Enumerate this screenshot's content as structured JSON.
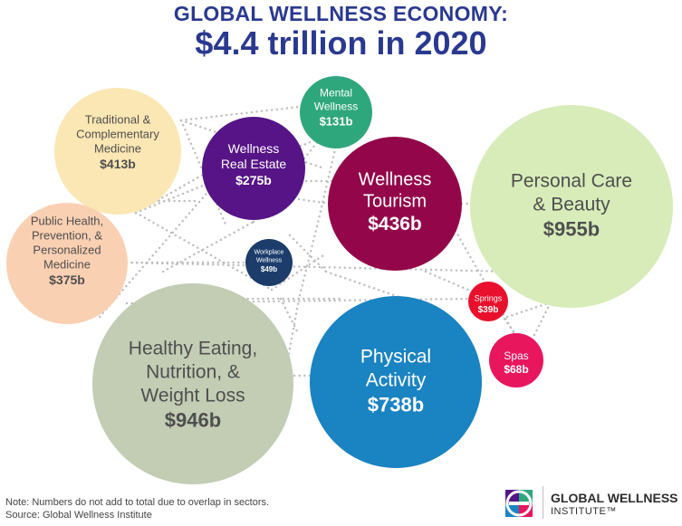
{
  "title": {
    "line1": "GLOBAL WELLNESS ECONOMY:",
    "line2": "$4.4 trillion in 2020"
  },
  "chart_data": {
    "type": "bubble",
    "unit": "US$ billions",
    "sectors": [
      {
        "name": "Personal Care & Beauty",
        "lines": [
          "Personal Care",
          "& Beauty"
        ],
        "label": "$955b",
        "value": 955,
        "color": "#d8ecb9",
        "text_color": "#4f4f4f"
      },
      {
        "name": "Healthy Eating, Nutrition, & Weight Loss",
        "lines": [
          "Healthy Eating,",
          "Nutrition, &",
          "Weight Loss"
        ],
        "label": "$946b",
        "value": 946,
        "color": "#c2cdb4",
        "text_color": "#4f4f4f"
      },
      {
        "name": "Physical Activity",
        "lines": [
          "Physical",
          "Activity"
        ],
        "label": "$738b",
        "value": 738,
        "color": "#1a83c2",
        "text_color": "#ffffff"
      },
      {
        "name": "Wellness Tourism",
        "lines": [
          "Wellness",
          "Tourism"
        ],
        "label": "$436b",
        "value": 436,
        "color": "#93074a",
        "text_color": "#ffffff"
      },
      {
        "name": "Traditional & Complementary Medicine",
        "lines": [
          "Traditional &",
          "Complementary",
          "Medicine"
        ],
        "label": "$413b",
        "value": 413,
        "color": "#fbe7b4",
        "text_color": "#4f4f4f"
      },
      {
        "name": "Public Health, Prevention, & Personalized Medicine",
        "lines": [
          "Public Health,",
          "Prevention, &",
          "Personalized",
          "Medicine"
        ],
        "label": "$375b",
        "value": 375,
        "color": "#fad0b3",
        "text_color": "#4f4f4f"
      },
      {
        "name": "Wellness Real Estate",
        "lines": [
          "Wellness",
          "Real Estate"
        ],
        "label": "$275b",
        "value": 275,
        "color": "#561487",
        "text_color": "#ffffff"
      },
      {
        "name": "Mental Wellness",
        "lines": [
          "Mental",
          "Wellness"
        ],
        "label": "$131b",
        "value": 131,
        "color": "#2fa77c",
        "text_color": "#ffffff"
      },
      {
        "name": "Spas",
        "lines": [
          "Spas"
        ],
        "label": "$68b",
        "value": 68,
        "color": "#e8175d",
        "text_color": "#ffffff"
      },
      {
        "name": "Workplace Wellness",
        "lines": [
          "Workplace",
          "Wellness"
        ],
        "label": "$49b",
        "value": 49,
        "color": "#1c3d6b",
        "text_color": "#ffffff"
      },
      {
        "name": "Springs",
        "lines": [
          "Springs"
        ],
        "label": "$39b",
        "value": 39,
        "color": "#e8102c",
        "text_color": "#ffffff"
      }
    ]
  },
  "notes": {
    "note": "Note: Numbers do not add to total due to overlap in sectors.",
    "source": "Source: Global Wellness Institute"
  },
  "logo": {
    "name": "GLOBAL WELLNESS",
    "sub": "INSTITUTE™"
  }
}
